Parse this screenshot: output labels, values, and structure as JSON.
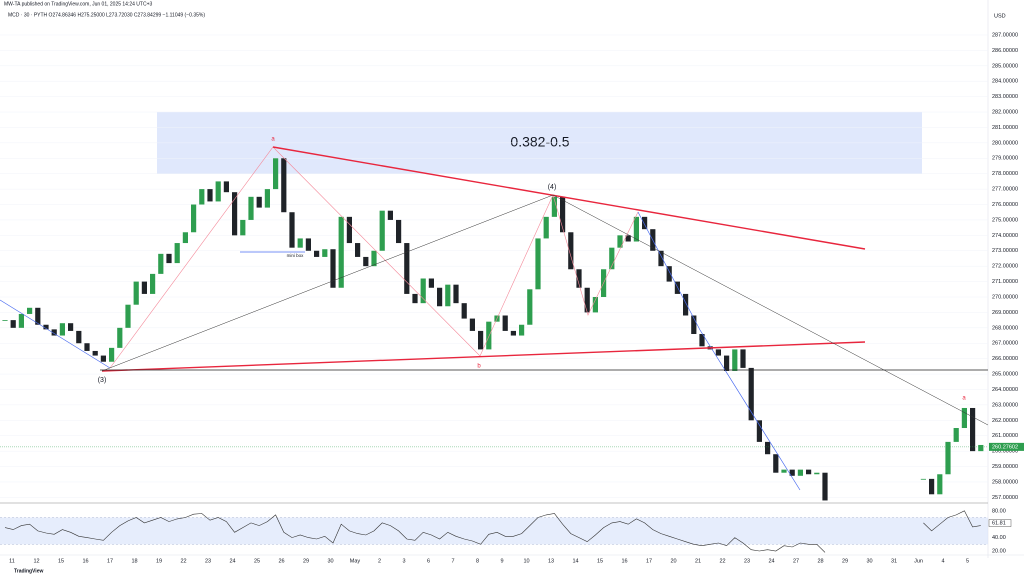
{
  "header": {
    "publisher": "MW-TA published on TradingView.com, Jun 01, 2025 14:24 UTC+3",
    "symbol": "MCD · 30 · PYTH  O274.86346 H275.25000 L273.72030 C273.84299 −1.11049 (−0.35%)",
    "currency": "USD",
    "logo": "TradingView"
  },
  "annotations": {
    "zone": "0.382-0.5",
    "wave3": "(3)",
    "wave4": "(4)",
    "a1": "a",
    "b": "b",
    "minibox": "mini box",
    "a2": "a"
  },
  "chart_data": {
    "type": "candlestick",
    "xticks": [
      "11",
      "12",
      "15",
      "16",
      "17",
      "18",
      "19",
      "22",
      "23",
      "24",
      "25",
      "26",
      "29",
      "30",
      "May",
      "2",
      "3",
      "6",
      "7",
      "8",
      "9",
      "10",
      "13",
      "14",
      "15",
      "16",
      "17",
      "20",
      "21",
      "22",
      "23",
      "24",
      "27",
      "28",
      "29",
      "30",
      "31",
      "Jun",
      "4",
      "5"
    ],
    "series": [
      {
        "up_color": "#2e9e4f",
        "down_color": "#1f2328",
        "values": [
          268.5,
          268.0,
          268.9,
          269.3,
          268.2,
          267.9,
          267.5,
          268.3,
          267.8,
          267.0,
          266.5,
          266.2,
          265.8,
          266.7,
          268.0,
          269.5,
          271.0,
          270.2,
          271.5,
          272.8,
          272.2,
          273.5,
          274.2,
          276.0,
          277.0,
          276.2,
          277.5,
          276.8,
          274.0,
          275.0,
          276.5,
          275.8,
          277.0,
          279.0,
          275.5,
          273.2,
          273.8,
          273.0,
          272.6,
          273.1,
          270.6,
          275.2,
          273.5,
          272.6,
          272.0,
          273.0,
          275.6,
          275.0,
          273.5,
          270.2,
          269.6,
          271.2,
          270.6,
          269.4,
          270.8,
          269.6,
          268.6,
          267.8,
          266.6,
          268.4,
          268.8,
          267.8,
          267.5,
          268.2,
          270.5,
          273.8,
          275.2,
          276.5,
          274.2,
          271.8,
          270.6,
          269.0,
          270.0,
          271.8,
          273.2,
          274.0,
          273.6,
          275.2,
          274.4,
          273.0,
          272.0,
          271.0,
          270.2,
          268.8,
          267.6,
          266.8,
          266.6,
          266.2,
          265.2,
          266.6,
          265.4,
          262.0,
          260.6,
          259.8,
          258.6,
          258.8,
          258.4,
          258.8,
          258.5,
          258.6,
          256.8,
          null,
          null,
          null,
          null,
          null,
          null,
          null,
          null,
          null,
          null,
          null,
          258.2,
          257.2,
          258.5,
          260.6,
          261.5,
          262.8,
          260.0,
          260.4
        ]
      }
    ],
    "last_price": {
      "value": 260.27602,
      "label": "260.27602"
    },
    "ylim": [
      256.7,
      288.75
    ],
    "yticks": [
      {
        "value": 257,
        "label": "257.00000"
      },
      {
        "value": 258,
        "label": "258.00000"
      },
      {
        "value": 259,
        "label": "259.00000"
      },
      {
        "value": 260,
        "label": "260.00000"
      },
      {
        "value": 261,
        "label": "261.00000"
      },
      {
        "value": 262,
        "label": "262.00000"
      },
      {
        "value": 263,
        "label": "263.00000"
      },
      {
        "value": 264,
        "label": "264.00000"
      },
      {
        "value": 265,
        "label": "265.00000"
      },
      {
        "value": 266,
        "label": "266.00000"
      },
      {
        "value": 267,
        "label": "267.00000"
      },
      {
        "value": 268,
        "label": "268.00000"
      },
      {
        "value": 269,
        "label": "269.00000"
      },
      {
        "value": 270,
        "label": "270.00000"
      },
      {
        "value": 271,
        "label": "271.00000"
      },
      {
        "value": 272,
        "label": "272.00000"
      },
      {
        "value": 273,
        "label": "273.00000"
      },
      {
        "value": 274,
        "label": "274.00000"
      },
      {
        "value": 275,
        "label": "275.00000"
      },
      {
        "value": 276,
        "label": "276.00000"
      },
      {
        "value": 277,
        "label": "277.00000"
      },
      {
        "value": 278,
        "label": "278.00000"
      },
      {
        "value": 279,
        "label": "279.00000"
      },
      {
        "value": 280,
        "label": "280.00000"
      },
      {
        "value": 281,
        "label": "281.00000"
      },
      {
        "value": 282,
        "label": "282.00000"
      },
      {
        "value": 283,
        "label": "283.00000"
      },
      {
        "value": 284,
        "label": "284.00000"
      },
      {
        "value": 285,
        "label": "285.00000"
      },
      {
        "value": 286,
        "label": "286.00000"
      },
      {
        "value": 287,
        "label": "287.00000"
      }
    ]
  },
  "rsi": {
    "color": "#333333",
    "values": [
      55,
      52,
      58,
      60,
      50,
      47,
      45,
      52,
      48,
      42,
      40,
      38,
      36,
      48,
      58,
      65,
      70,
      62,
      66,
      70,
      64,
      68,
      70,
      75,
      76,
      66,
      70,
      64,
      48,
      55,
      62,
      58,
      64,
      74,
      48,
      40,
      44,
      40,
      38,
      42,
      32,
      60,
      50,
      46,
      44,
      50,
      62,
      58,
      50,
      38,
      36,
      48,
      44,
      38,
      48,
      42,
      38,
      35,
      30,
      45,
      48,
      42,
      42,
      46,
      58,
      70,
      74,
      76,
      60,
      46,
      40,
      34,
      44,
      55,
      62,
      64,
      60,
      68,
      62,
      52,
      46,
      42,
      38,
      34,
      30,
      28,
      30,
      32,
      28,
      40,
      32,
      22,
      20,
      22,
      20,
      28,
      26,
      32,
      30,
      30,
      18,
      null,
      null,
      null,
      null,
      null,
      null,
      null,
      null,
      null,
      null,
      null,
      62,
      50,
      60,
      70,
      74,
      80,
      56,
      58
    ],
    "ylim": [
      14.1,
      90.2
    ],
    "band": [
      30,
      70
    ],
    "yticks": [
      {
        "value": 80,
        "label": "80.00"
      },
      {
        "value": 60,
        "label": "60.00"
      },
      {
        "value": 40,
        "label": "40.00"
      },
      {
        "value": 20,
        "label": "20.00"
      }
    ],
    "last": {
      "value": 61.81,
      "label": "61.81"
    }
  }
}
